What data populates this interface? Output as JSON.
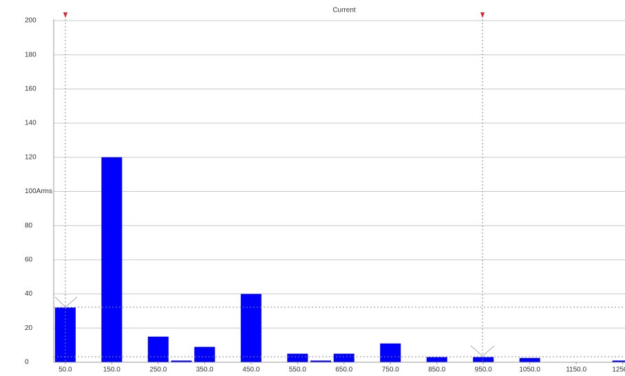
{
  "chart_data": {
    "type": "bar",
    "title": "Current",
    "x": [
      50,
      150,
      250,
      300,
      350,
      450,
      550,
      600,
      650,
      750,
      850,
      950,
      1050,
      1250
    ],
    "values": [
      32,
      120,
      15,
      1,
      9,
      40,
      5,
      1,
      5,
      11,
      3,
      3,
      2.5,
      1
    ],
    "color": "#0000ff",
    "xlim": [
      25,
      1255
    ],
    "xticks": [
      {
        "value": 50,
        "label": "50.0"
      },
      {
        "value": 150,
        "label": "150.0"
      },
      {
        "value": 250,
        "label": "250.0"
      },
      {
        "value": 350,
        "label": "350.0"
      },
      {
        "value": 450,
        "label": "450.0"
      },
      {
        "value": 550,
        "label": "550.0"
      },
      {
        "value": 650,
        "label": "650.0"
      },
      {
        "value": 750,
        "label": "750.0"
      },
      {
        "value": 850,
        "label": "850.0"
      },
      {
        "value": 950,
        "label": "950.0"
      },
      {
        "value": 1050,
        "label": "1050.0"
      },
      {
        "value": 1150,
        "label": "1150.0"
      },
      {
        "value": 1250,
        "label": "1250.0"
      }
    ],
    "ylim": [
      0,
      200
    ],
    "yticks": [
      0,
      20,
      40,
      60,
      80,
      {
        "value": 100,
        "label": "100Arms"
      },
      120,
      140,
      160,
      180,
      200
    ],
    "grid": true
  }
}
